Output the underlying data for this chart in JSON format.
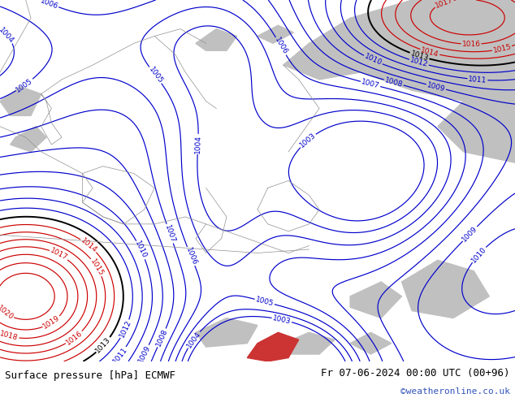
{
  "title_left": "Surface pressure [hPa] ECMWF",
  "title_right": "Fr 07-06-2024 00:00 UTC (00+96)",
  "credit": "©weatheronline.co.uk",
  "bg_map_color": "#aad890",
  "gray_area_color": "#c0c0c0",
  "footer_bg": "#ffffff",
  "blue_contour_color": "#0000cc",
  "red_contour_color": "#cc0000",
  "black_contour_color": "#000000",
  "label_fontsize": 6.5,
  "footer_fontsize": 9,
  "credit_fontsize": 8,
  "credit_color": "#3355bb",
  "fig_width": 6.34,
  "fig_height": 4.9,
  "dpi": 100
}
